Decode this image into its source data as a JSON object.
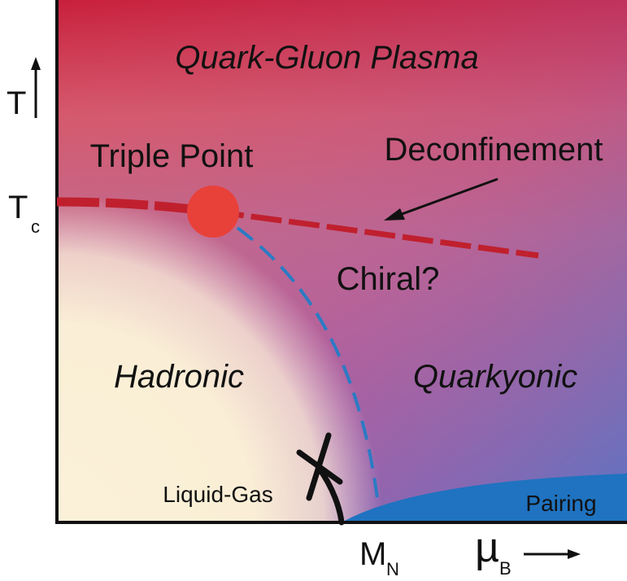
{
  "regions": {
    "qgp": "Quark-Gluon Plasma",
    "hadronic": "Hadronic",
    "quarkyonic": "Quarkyonic",
    "chiral": "Chiral?",
    "pairing": "Pairing",
    "liquid_gas": "Liquid-Gas"
  },
  "annotations": {
    "triple_point": "Triple Point",
    "deconfinement": "Deconfinement"
  },
  "axes": {
    "y_label": "T",
    "tc_main": "T",
    "tc_sub": "c",
    "x_label_mu": "µ",
    "x_label_sub": "B",
    "mn_main": "M",
    "mn_sub": "N"
  },
  "colors": {
    "qgp_top": "#c8203c",
    "quarkyonic_purple": "#a85aa8",
    "hadronic_cream": "#fbf1d8",
    "pairing_blue": "#1f73c0",
    "deconfinement_line": "#c0202e",
    "chiral_line": "#2b7bc4",
    "triple_point": "#e8413a",
    "liquid_gas_line": "#111111"
  }
}
